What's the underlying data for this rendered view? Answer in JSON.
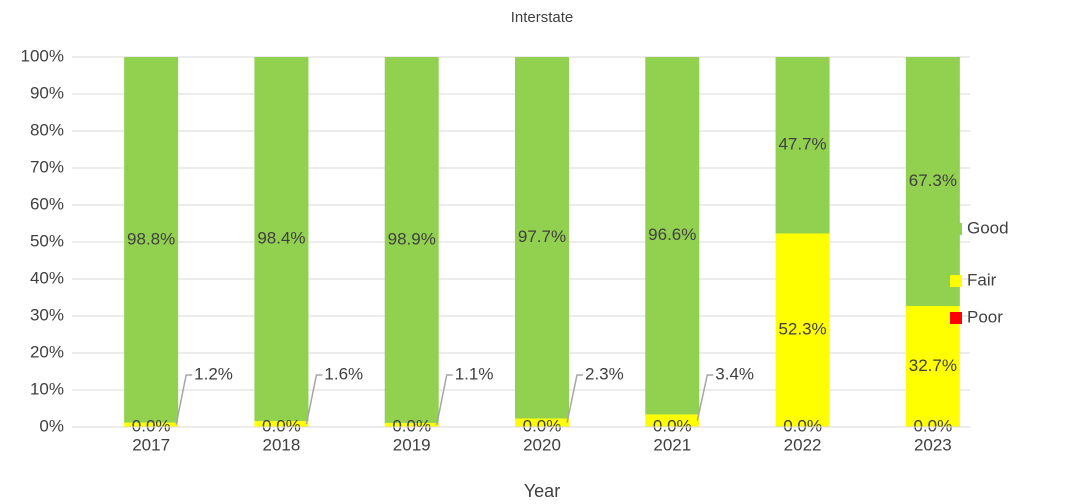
{
  "chart_data": {
    "type": "stacked_bar",
    "title": "Interstate",
    "x_label": "Year",
    "categories": [
      "2017",
      "2018",
      "2019",
      "2020",
      "2021",
      "2022",
      "2023"
    ],
    "series": [
      {
        "name": "Poor",
        "color": "#ff0000",
        "values": [
          0,
          0,
          0,
          0,
          0,
          0,
          0
        ],
        "value_labels": [
          "0.0%",
          "0.0%",
          "0.0%",
          "0.0%",
          "0.0%",
          "0.0%",
          "0.0%"
        ]
      },
      {
        "name": "Fair",
        "color": "#ffff00",
        "values": [
          1.2,
          1.6,
          1.1,
          2.3,
          3.4,
          52.3,
          32.7
        ],
        "value_labels": [
          "1.2%",
          "1.6%",
          "1.1%",
          "2.3%",
          "3.4%",
          "52.3%",
          "32.7%"
        ]
      },
      {
        "name": "Good",
        "color": "#92d050",
        "values": [
          98.8,
          98.4,
          98.9,
          97.7,
          96.6,
          47.7,
          67.3
        ],
        "value_labels": [
          "98.8%",
          "98.4%",
          "98.9%",
          "97.7%",
          "96.6%",
          "47.7%",
          "67.3%"
        ]
      }
    ],
    "ylim": [
      0,
      100
    ],
    "yticks": [
      {
        "value": 0,
        "label": "0%"
      },
      {
        "value": 10,
        "label": "10%"
      },
      {
        "value": 20,
        "label": "20%"
      },
      {
        "value": 30,
        "label": "30%"
      },
      {
        "value": 40,
        "label": "40%"
      },
      {
        "value": 50,
        "label": "50%"
      },
      {
        "value": 60,
        "label": "60%"
      },
      {
        "value": 70,
        "label": "70%"
      },
      {
        "value": 80,
        "label": "80%"
      },
      {
        "value": 90,
        "label": "90%"
      },
      {
        "value": 100,
        "label": "100%"
      }
    ],
    "grid": true,
    "legend": "right"
  }
}
